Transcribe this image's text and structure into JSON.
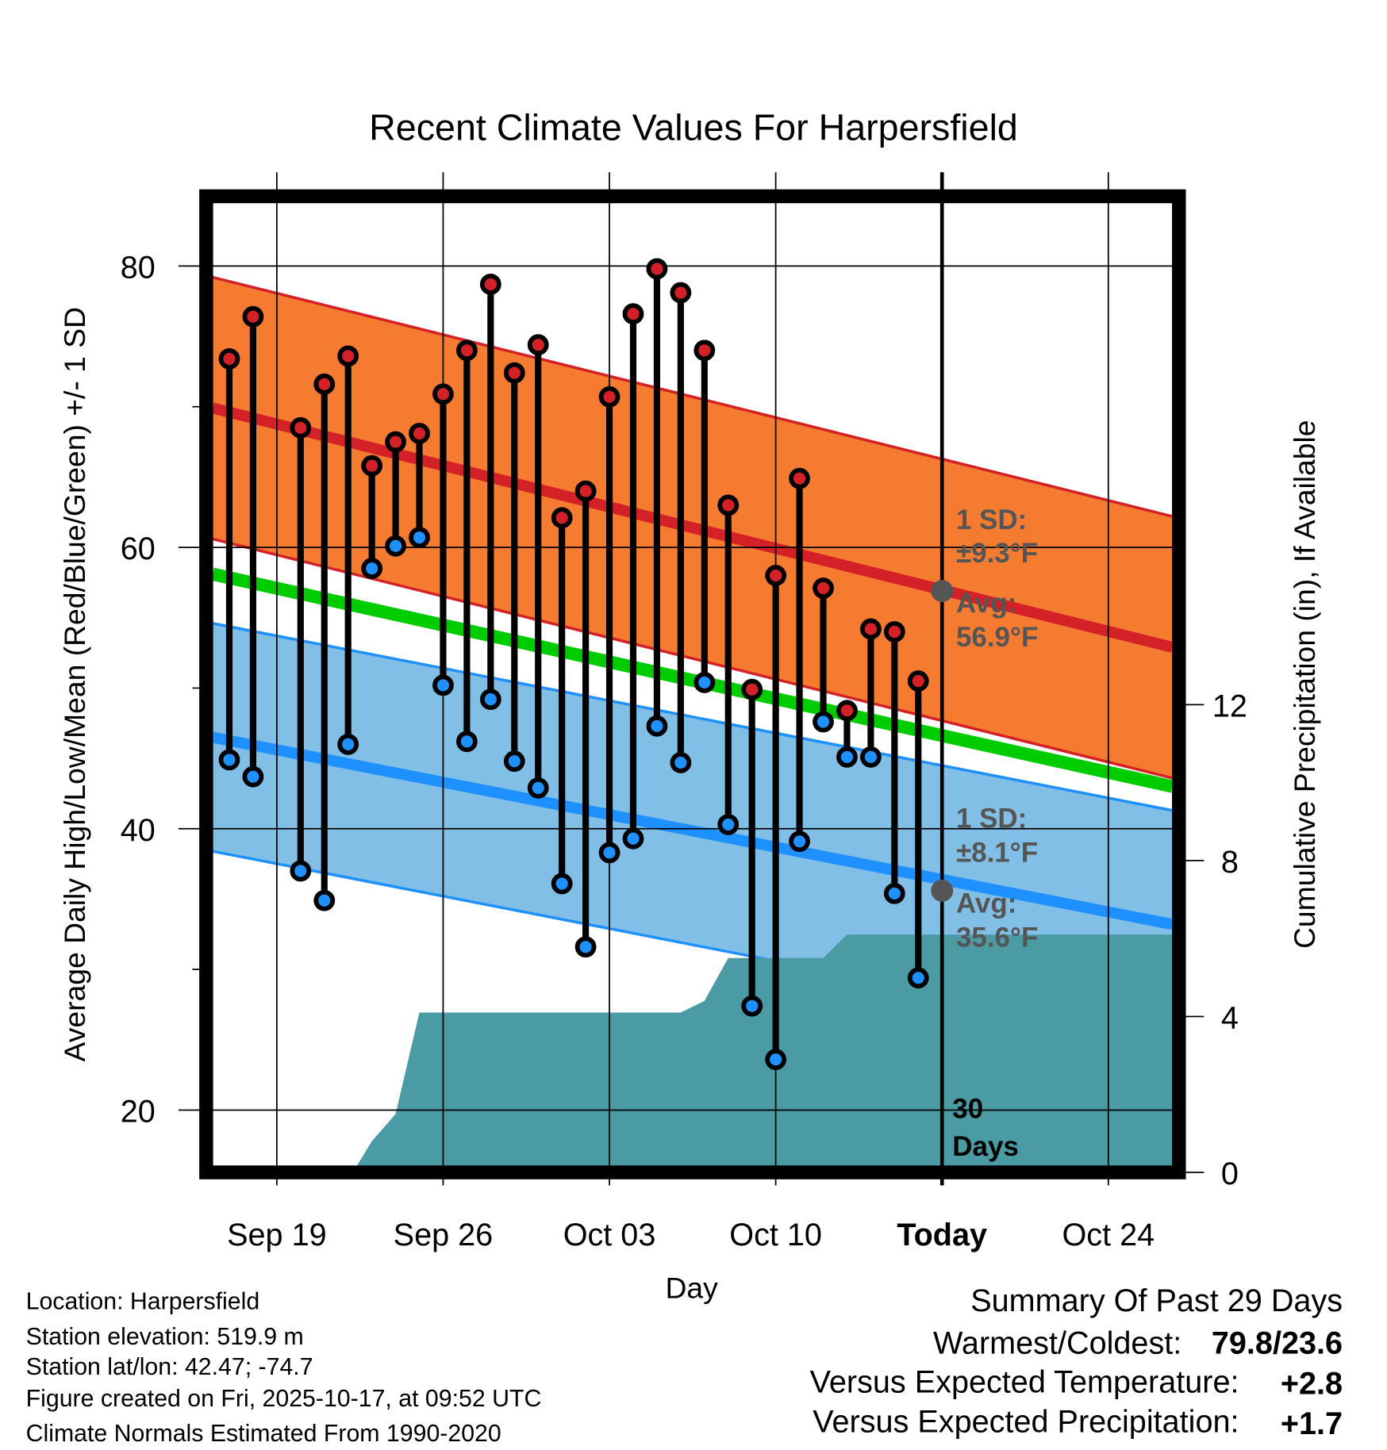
{
  "chart_data": {
    "type": "line",
    "title": "Recent Climate Values For Harpersfield",
    "xlabel": "Day",
    "ylabel": "Average Daily High/Low/Mean (Red/Blue/Green) +/- 1 SD",
    "y2label": "Cumulative Precipitation (in), If Available",
    "ylim": [
      16.1,
      84.3
    ],
    "y2lim": [
      0,
      12
    ],
    "yticks": [
      20,
      40,
      60,
      80
    ],
    "y2ticks": [
      0,
      4,
      8,
      12
    ],
    "xlim_days_from_sep17": [
      -0.7,
      39.7
    ],
    "xticks": [
      {
        "day": 2,
        "label": "Sep 19"
      },
      {
        "day": 9,
        "label": "Sep 26"
      },
      {
        "day": 16,
        "label": "Oct 03"
      },
      {
        "day": 23,
        "label": "Oct 10"
      },
      {
        "day": 30,
        "label": "Today"
      },
      {
        "day": 37,
        "label": "Oct 24"
      }
    ],
    "observations": {
      "dates": [
        "Sep 17",
        "Sep 18",
        "Sep 20",
        "Sep 21",
        "Sep 22",
        "Sep 23",
        "Sep 24",
        "Sep 25",
        "Sep 26",
        "Sep 27",
        "Sep 28",
        "Sep 29",
        "Sep 30",
        "Oct 01",
        "Oct 02",
        "Oct 03",
        "Oct 04",
        "Oct 05",
        "Oct 06",
        "Oct 07",
        "Oct 08",
        "Oct 09",
        "Oct 10",
        "Oct 11",
        "Oct 12",
        "Oct 13",
        "Oct 14",
        "Oct 15",
        "Oct 16"
      ],
      "day": [
        0,
        1,
        3,
        4,
        5,
        6,
        7,
        8,
        9,
        10,
        11,
        12,
        13,
        14,
        15,
        16,
        17,
        18,
        19,
        20,
        21,
        22,
        23,
        24,
        25,
        26,
        27,
        28,
        29
      ],
      "high": [
        73.4,
        76.4,
        68.5,
        71.6,
        73.6,
        65.8,
        67.5,
        68.1,
        70.9,
        74.0,
        78.7,
        72.4,
        74.4,
        62.1,
        64.0,
        70.7,
        76.6,
        79.8,
        78.1,
        74.0,
        63.0,
        49.9,
        58.0,
        64.9,
        57.1,
        48.4,
        54.2,
        54.0,
        50.5
      ],
      "low": [
        44.9,
        43.7,
        37.0,
        34.9,
        46.0,
        58.5,
        60.1,
        60.7,
        50.2,
        46.2,
        49.2,
        44.8,
        42.9,
        36.1,
        31.6,
        38.3,
        39.3,
        47.3,
        44.7,
        50.4,
        40.3,
        27.4,
        23.6,
        39.1,
        47.6,
        45.1,
        45.1,
        35.4,
        29.4
      ]
    },
    "normals": {
      "avg_high_start": 69.9,
      "avg_high_end": 52.9,
      "avg_high_today": 56.9,
      "high_sd": 9.3,
      "avg_low_start": 46.5,
      "avg_low_end": 33.2,
      "avg_low_today": 35.6,
      "low_sd": 8.1,
      "mean_start": 58.1,
      "mean_end": 43.0
    },
    "precip": {
      "day": [
        5.2,
        6.0,
        7.0,
        8.0,
        19.0,
        20.0,
        21.0,
        25.0,
        26.0,
        39.7
      ],
      "cumulative": [
        0,
        0.8,
        1.5,
        4.1,
        4.1,
        4.4,
        5.5,
        5.5,
        6.1,
        6.1
      ]
    },
    "annotations": {
      "high_sd_label": "1 SD:",
      "high_sd_value": "±9.3°F",
      "high_avg_label": "Avg:",
      "high_avg_value": "56.9°F",
      "low_sd_label": "1 SD:",
      "low_sd_value": "±8.1°F",
      "low_avg_label": "Avg:",
      "low_avg_value": "35.6°F",
      "window_num": "30",
      "window_unit": "Days"
    },
    "colors": {
      "high_band": "#F47B30",
      "high_line": "#D42027",
      "mean_line": "#00CC00",
      "low_band": "#82BFE6",
      "low_line": "#1E90FF",
      "precip": "#4A9BA3"
    }
  },
  "footer": {
    "location": "Location: Harpersfield",
    "elevation": "Station elevation: 519.9 m",
    "latlon": "Station lat/lon: 42.47; -74.7",
    "created": "Figure created on Fri, 2025-10-17, at 09:52 UTC",
    "normals": "Climate Normals Estimated From 1990-2020"
  },
  "summary": {
    "title": "Summary Of Past 29 Days",
    "warm_cold_label": "Warmest/Coldest:",
    "warm_cold_value": "79.8/23.6",
    "temp_label": "Versus Expected Temperature:",
    "temp_value": "+2.8",
    "precip_label": "Versus Expected Precipitation:",
    "precip_value": "+1.7",
    "temp_color": "#D42027",
    "precip_color": "#22BB22"
  }
}
